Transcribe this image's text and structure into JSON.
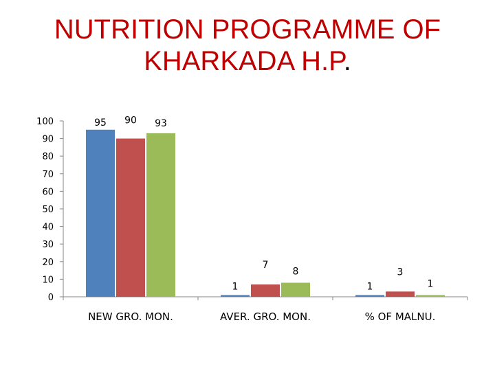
{
  "slide": {
    "title_line1": "NUTRITION PROGRAMME OF",
    "title_line2": "KHARKADA  H.P",
    "title_end": "."
  },
  "chart_data": {
    "type": "bar",
    "title": "NUTRITION PROGRAMME OF KHARKADA  H.P.",
    "categories": [
      "NEW GRO. MON.",
      "AVER. GRO. MON.",
      "% OF MALNU."
    ],
    "series": [
      {
        "color": "#4f81bd",
        "values": [
          95,
          1,
          1
        ]
      },
      {
        "color": "#c0504d",
        "values": [
          90,
          7,
          3
        ]
      },
      {
        "color": "#9bbb59",
        "values": [
          93,
          8,
          1
        ]
      }
    ],
    "data_labels": [
      [
        "95",
        "1",
        "1"
      ],
      [
        "90",
        "7",
        "3"
      ],
      [
        "93",
        "8",
        "1"
      ]
    ],
    "yticks": [
      0,
      10,
      20,
      30,
      40,
      50,
      60,
      70,
      80,
      90,
      100
    ],
    "ylim": [
      0,
      100
    ],
    "xlabel": "",
    "ylabel": "",
    "grid": false,
    "legend": "none"
  }
}
